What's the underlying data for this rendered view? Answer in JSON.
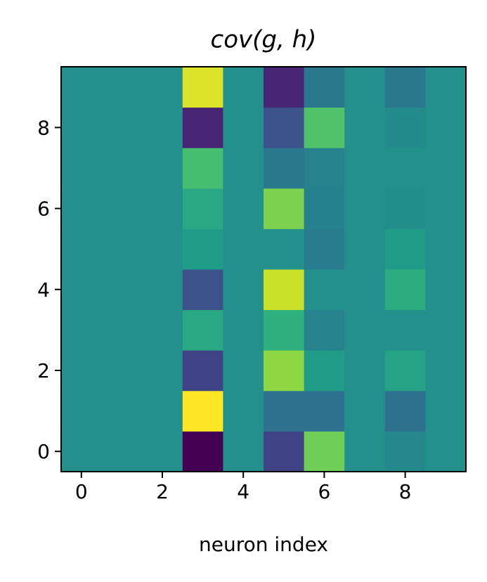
{
  "chart_data": {
    "type": "heatmap",
    "title": "cov(g, h)",
    "xlabel": "neuron index",
    "xlim": [
      -0.5,
      9.5
    ],
    "ylim": [
      -0.5,
      9.5
    ],
    "xticks": [
      0,
      2,
      4,
      6,
      8
    ],
    "yticks": [
      0,
      2,
      4,
      6,
      8
    ],
    "colormap": "viridis",
    "z": [
      [
        0.5,
        0.5,
        0.5,
        0.0,
        0.5,
        0.2,
        0.78,
        0.5,
        0.47,
        0.5
      ],
      [
        0.5,
        0.5,
        0.5,
        1.0,
        0.5,
        0.37,
        0.37,
        0.5,
        0.37,
        0.5
      ],
      [
        0.5,
        0.5,
        0.5,
        0.2,
        0.5,
        0.83,
        0.55,
        0.5,
        0.58,
        0.5
      ],
      [
        0.5,
        0.5,
        0.5,
        0.6,
        0.5,
        0.63,
        0.45,
        0.5,
        0.5,
        0.5
      ],
      [
        0.5,
        0.5,
        0.5,
        0.25,
        0.5,
        0.92,
        0.5,
        0.5,
        0.62,
        0.5
      ],
      [
        0.5,
        0.5,
        0.5,
        0.55,
        0.5,
        0.5,
        0.42,
        0.5,
        0.55,
        0.5
      ],
      [
        0.5,
        0.5,
        0.5,
        0.6,
        0.5,
        0.8,
        0.44,
        0.5,
        0.49,
        0.5
      ],
      [
        0.5,
        0.5,
        0.5,
        0.7,
        0.5,
        0.4,
        0.45,
        0.5,
        0.5,
        0.5
      ],
      [
        0.5,
        0.5,
        0.5,
        0.1,
        0.5,
        0.25,
        0.72,
        0.5,
        0.48,
        0.5
      ],
      [
        0.5,
        0.5,
        0.5,
        0.95,
        0.5,
        0.1,
        0.4,
        0.5,
        0.4,
        0.5
      ]
    ]
  }
}
